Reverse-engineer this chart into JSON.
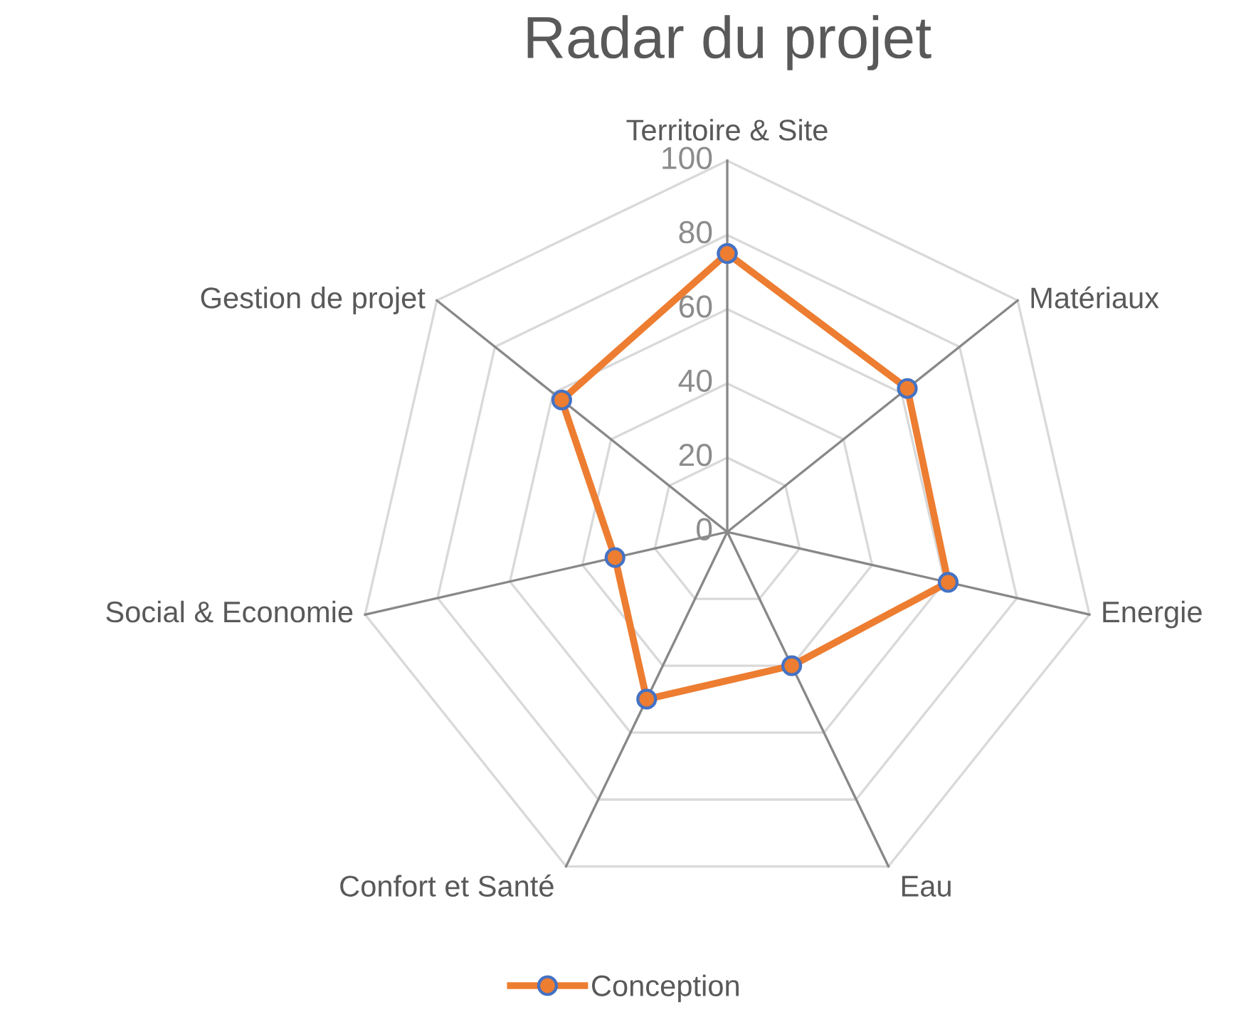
{
  "chart_data": {
    "type": "radar",
    "title": "Radar du projet",
    "categories": [
      "Territoire & Site",
      "Matériaux",
      "Energie",
      "Eau",
      "Confort et Santé",
      "Social & Economie",
      "Gestion de projet"
    ],
    "series": [
      {
        "name": "Conception",
        "color": "#ed7d31",
        "values": [
          75,
          62,
          61,
          40,
          50,
          31,
          57
        ]
      }
    ],
    "ylim": [
      0,
      100
    ],
    "yticks": [
      0,
      20,
      40,
      60,
      80,
      100
    ],
    "grid": true,
    "legend": "bottom",
    "marker": "circle",
    "line_style": "solid"
  }
}
